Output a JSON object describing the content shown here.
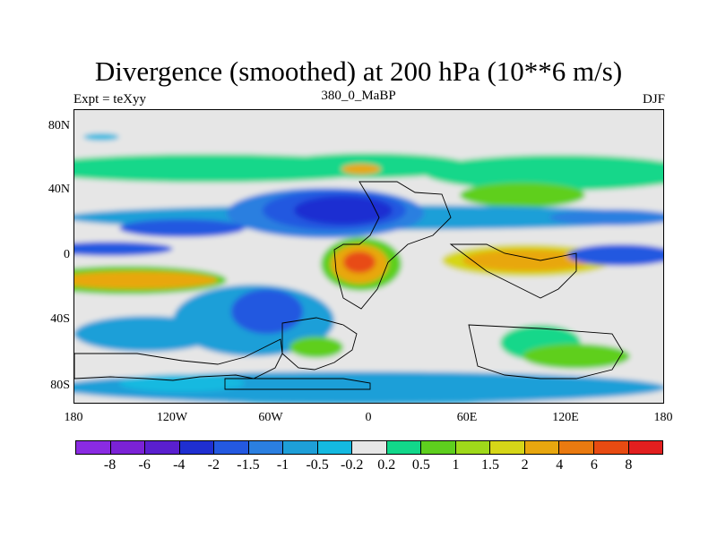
{
  "figure": {
    "title": "Divergence (smoothed) at 200 hPa (10**6 m/s)",
    "subtitle_left": "Expt = teXyy",
    "subtitle_center": "380_0_MaBP",
    "subtitle_right": "DJF"
  },
  "map": {
    "projection": "cylindrical-equidistant",
    "lat_tick_labels": [
      "80N",
      "40N",
      "0",
      "40S",
      "80S"
    ],
    "lon_tick_labels": [
      "180",
      "120W",
      "60W",
      "0",
      "60E",
      "120E",
      "180"
    ],
    "continent_outline_color": "#000000",
    "missing_color": "#e6e6e6"
  },
  "colorbar": {
    "colors": [
      "#8a2be2",
      "#7b22d6",
      "#5a1fcf",
      "#1f2fd1",
      "#2459e0",
      "#2b7fe0",
      "#1e9fd8",
      "#14b9e0",
      "#e6e6e6",
      "#12d78a",
      "#5ecf1e",
      "#9fd91a",
      "#d6d618",
      "#e8a70f",
      "#ea7a10",
      "#e84b12",
      "#e21f1f"
    ],
    "labels": [
      "-8",
      "-6",
      "-4",
      "-2",
      "-1.5",
      "-1",
      "-0.5",
      "-0.2",
      "0.2",
      "0.5",
      "1",
      "1.5",
      "2",
      "4",
      "6",
      "8"
    ]
  }
}
